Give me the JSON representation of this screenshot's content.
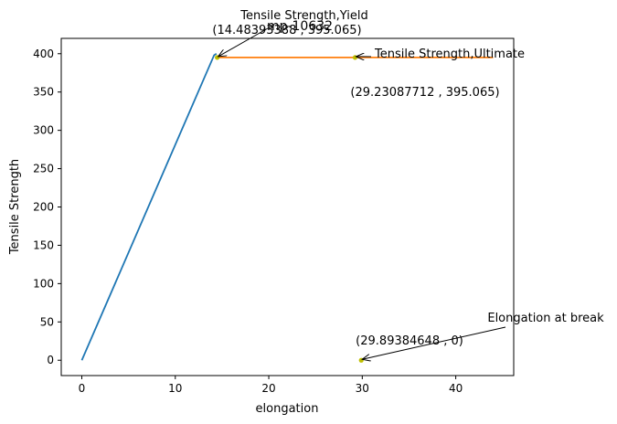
{
  "chart_data": {
    "type": "line",
    "title": "mp-10632",
    "xlabel": "elongation",
    "ylabel": "Tensile Strength",
    "xlim": [
      -2.2,
      46.2
    ],
    "ylim": [
      -20,
      420
    ],
    "xticks": [
      0,
      10,
      20,
      30,
      40
    ],
    "yticks": [
      0,
      50,
      100,
      150,
      200,
      250,
      300,
      350,
      400
    ],
    "grid": false,
    "series": [
      {
        "color": "#1f77b4",
        "x": [
          0,
          14.15,
          14.4
        ],
        "y": [
          0,
          398,
          400
        ]
      },
      {
        "color": "#ff7f0e",
        "x": [
          14.49,
          44.0
        ],
        "y": [
          395.065,
          395.065
        ]
      }
    ],
    "points": [
      {
        "x": 14.48393388,
        "y": 395.065,
        "color": "#bfbf00"
      },
      {
        "x": 29.23087712,
        "y": 395.065,
        "color": "#bfbf00"
      },
      {
        "x": 29.89384648,
        "y": 0,
        "color": "#bfbf00"
      }
    ],
    "annotations": [
      {
        "label": "Tensile Strength,Yield",
        "value": "(14.48393388 , 395.065)",
        "x": 14.48393388,
        "y": 395.065
      },
      {
        "label": "Tensile Strength,Ultimate",
        "value": "(29.23087712 , 395.065)",
        "x": 29.23087712,
        "y": 395.065
      },
      {
        "label": "Elongation at break",
        "value": "(29.89384648 , 0)",
        "x": 29.89384648,
        "y": 0
      }
    ]
  }
}
